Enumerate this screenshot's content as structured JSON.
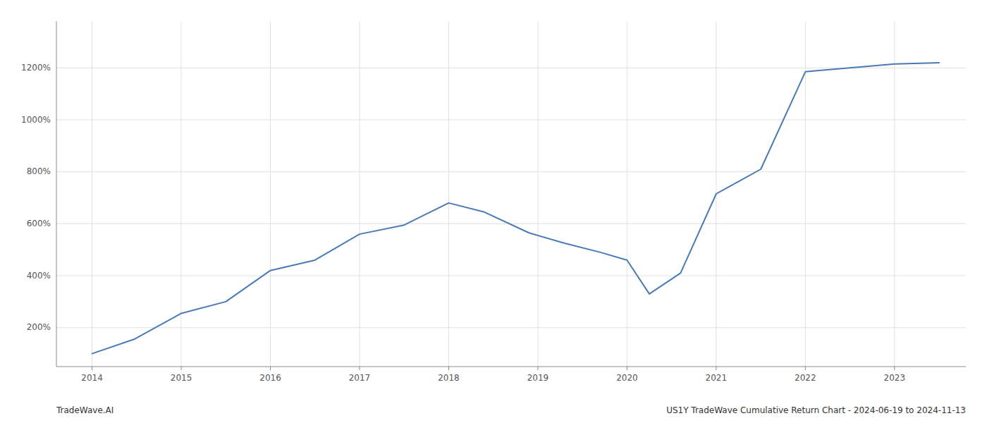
{
  "chart_data": {
    "type": "line",
    "x": [
      2014.0,
      2014.47,
      2015.0,
      2015.5,
      2016.0,
      2016.5,
      2017.0,
      2017.5,
      2018.0,
      2018.4,
      2018.9,
      2019.3,
      2019.7,
      2020.0,
      2020.25,
      2020.6,
      2021.0,
      2021.5,
      2022.0,
      2022.15,
      2022.5,
      2023.0,
      2023.5
    ],
    "values": [
      100,
      155,
      255,
      300,
      420,
      460,
      560,
      595,
      680,
      645,
      565,
      525,
      490,
      460,
      330,
      410,
      715,
      810,
      1185,
      1190,
      1200,
      1215,
      1220
    ],
    "color": "#4a7ab5",
    "xlim": [
      2013.6,
      2023.8
    ],
    "ylim": [
      50,
      1380
    ],
    "xticks": [
      2014,
      2015,
      2016,
      2017,
      2018,
      2019,
      2020,
      2021,
      2022,
      2023
    ],
    "yticks": [
      {
        "value": 200,
        "label": "200%"
      },
      {
        "value": 400,
        "label": "400%"
      },
      {
        "value": 600,
        "label": "600%"
      },
      {
        "value": 800,
        "label": "800%"
      },
      {
        "value": 1000,
        "label": "1000%"
      },
      {
        "value": 1200,
        "label": "1200%"
      }
    ],
    "grid": true,
    "annotations": [
      "TradeWave.AI",
      "US1Y TradeWave Cumulative Return Chart - 2024-06-19 to 2024-11-13"
    ]
  }
}
